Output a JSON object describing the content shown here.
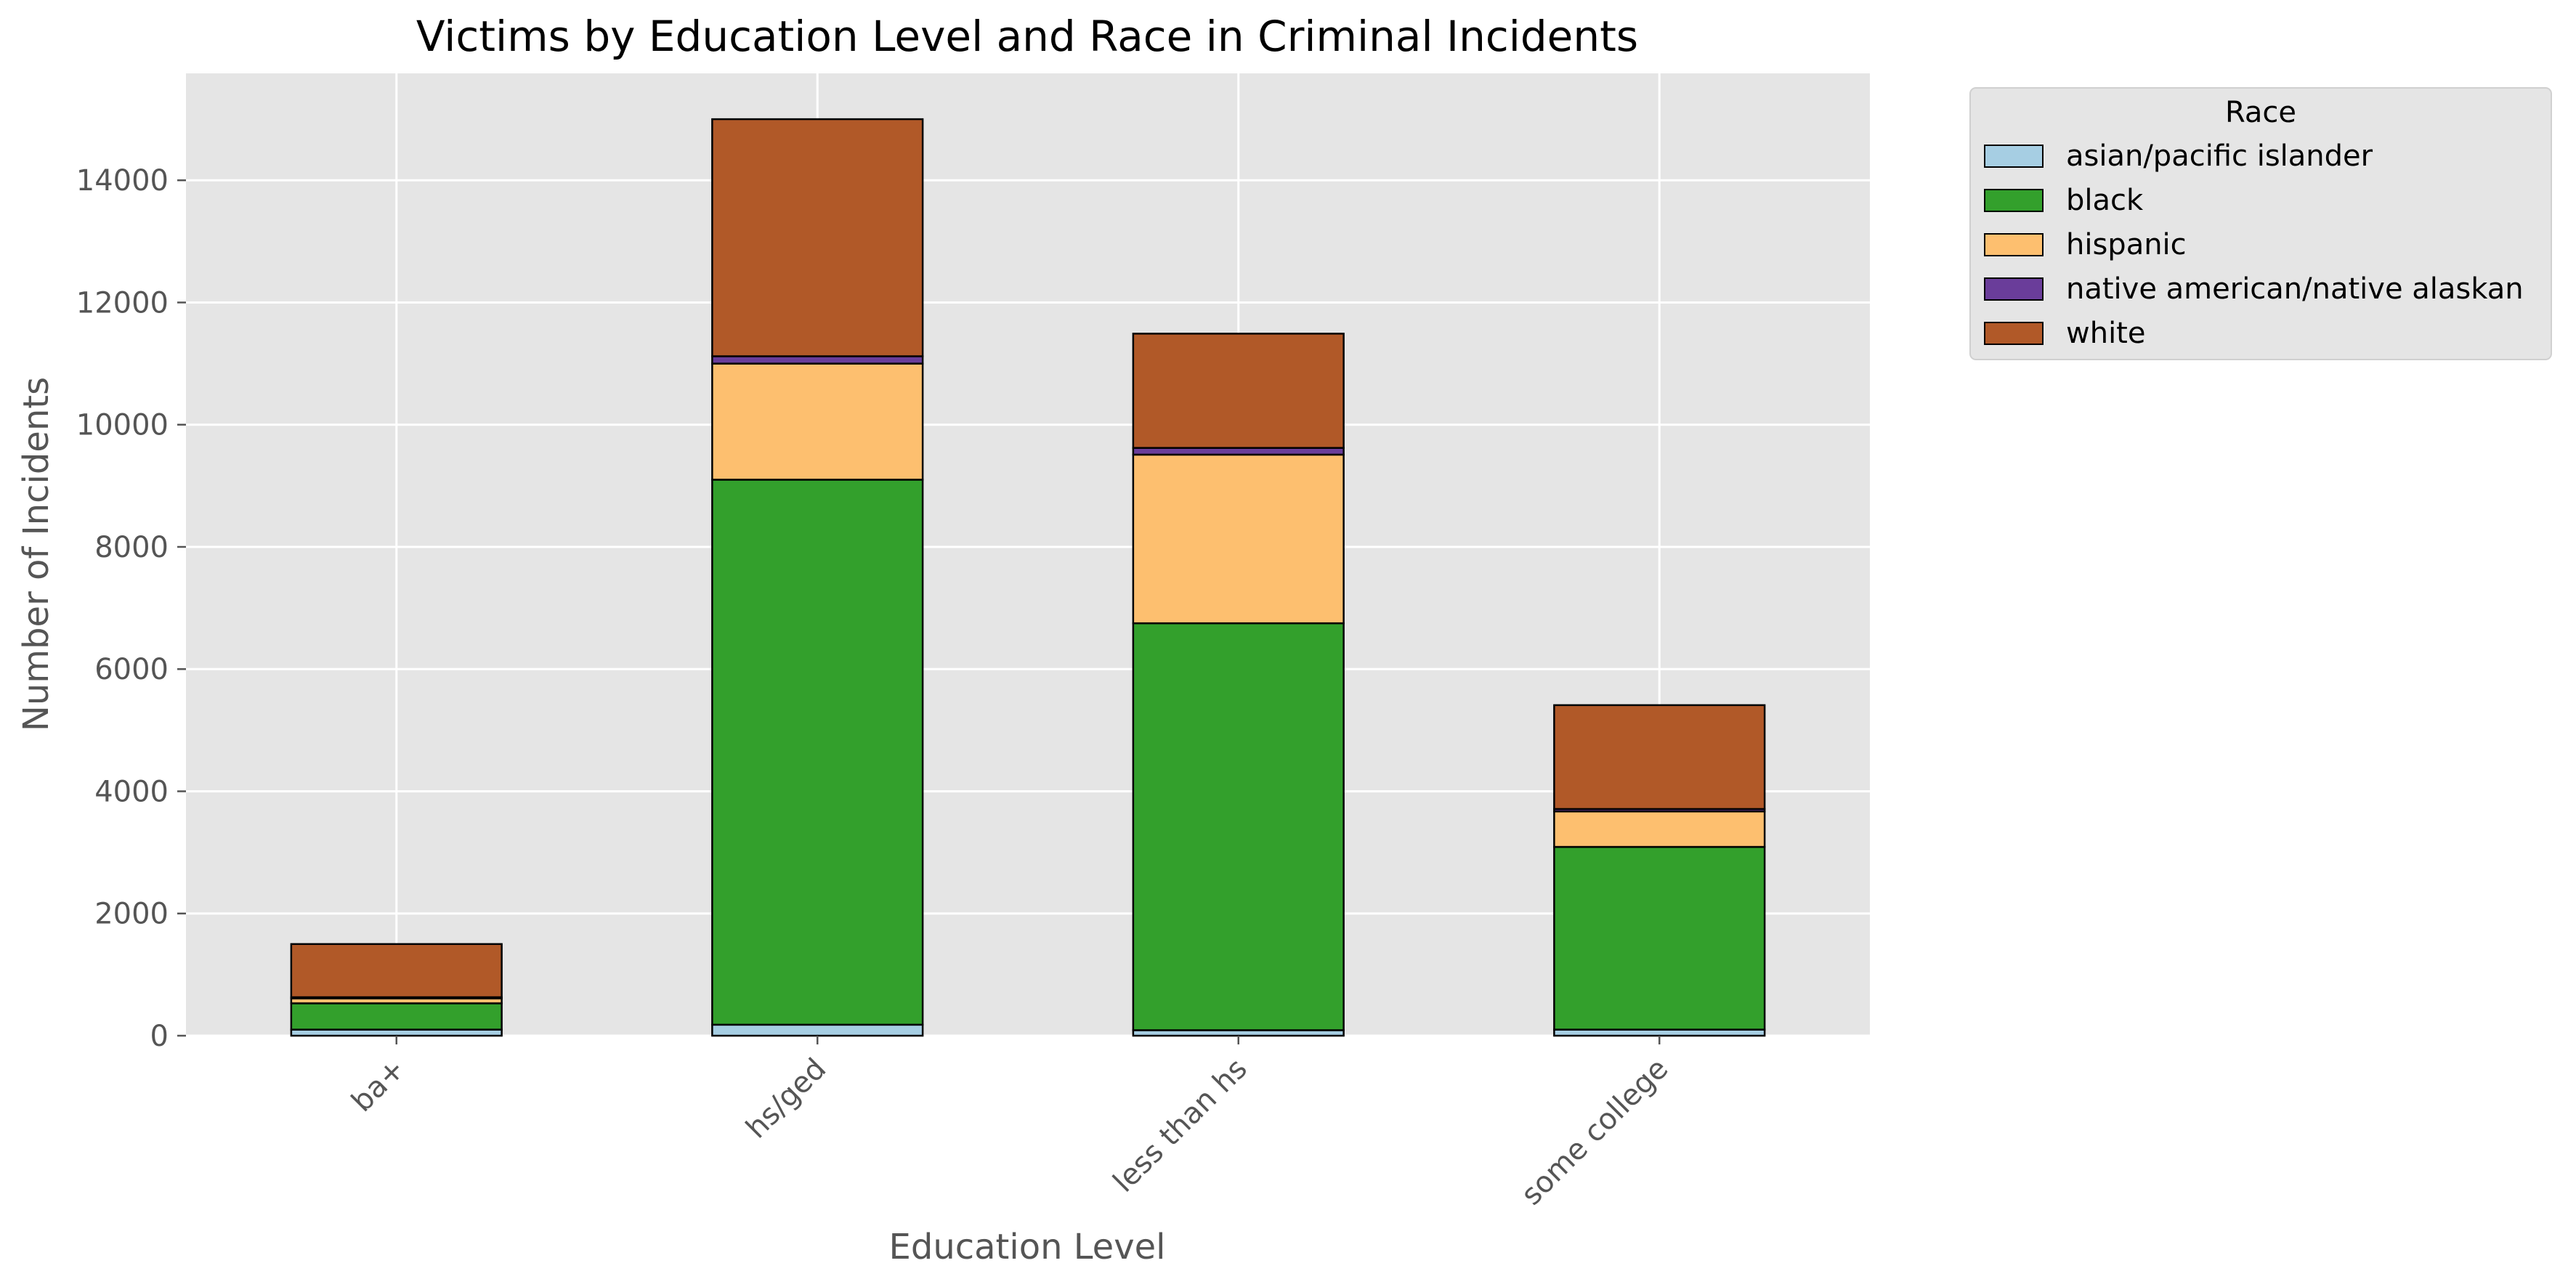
{
  "chart_data": {
    "type": "bar",
    "stacked": true,
    "title": "Victims by Education Level and Race in Criminal Incidents",
    "xlabel": "Education Level",
    "ylabel": "Number of Incidents",
    "categories": [
      "ba+",
      "hs/ged",
      "less than hs",
      "some college"
    ],
    "ylim": [
      0,
      15750
    ],
    "yticks": [
      0,
      2000,
      4000,
      6000,
      8000,
      10000,
      12000,
      14000
    ],
    "grid": true,
    "legend": {
      "title": "Race",
      "placement": "outside-top-right"
    },
    "series": [
      {
        "name": "asian/pacific islander",
        "color": "#a6cee3",
        "values": [
          100,
          180,
          90,
          100
        ]
      },
      {
        "name": "black",
        "color": "#33a02c",
        "values": [
          430,
          8920,
          6660,
          2990
        ]
      },
      {
        "name": "hispanic",
        "color": "#fdbf6f",
        "values": [
          80,
          1900,
          2760,
          580
        ]
      },
      {
        "name": "native american/native alaskan",
        "color": "#6a3d9a",
        "values": [
          20,
          120,
          110,
          40
        ]
      },
      {
        "name": "white",
        "color": "#b15928",
        "values": [
          870,
          3880,
          1870,
          1700
        ]
      }
    ]
  }
}
